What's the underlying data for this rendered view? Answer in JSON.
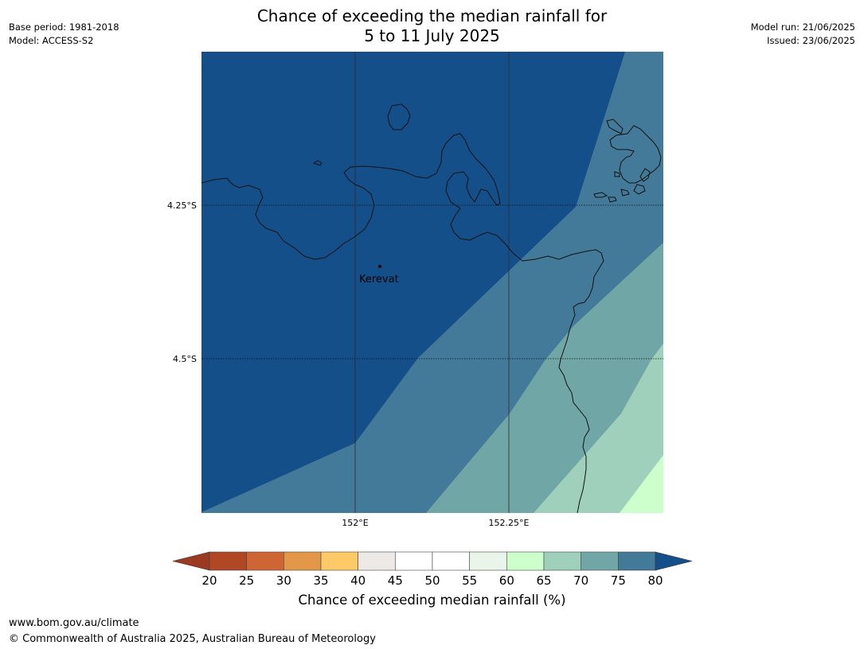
{
  "header": {
    "title_line1": "Chance of exceeding the median rainfall for",
    "title_line2": "5 to 11 July 2025",
    "base_period": "Base period: 1981-2018",
    "model": "Model: ACCESS-S2",
    "model_run": "Model run: 21/06/2025",
    "issued": "Issued: 23/06/2025"
  },
  "map": {
    "place": "Kerevat",
    "lat_labels": [
      "4.25°S",
      "4.5°S"
    ],
    "lon_labels": [
      "152°E",
      "152.25°E"
    ],
    "grid_style": "dotted latitude lines, solid longitude lines"
  },
  "colorbar": {
    "title": "Chance of exceeding median rainfall (%)",
    "ticks": [
      "20",
      "25",
      "30",
      "35",
      "40",
      "45",
      "50",
      "55",
      "60",
      "65",
      "70",
      "75",
      "80"
    ],
    "colors": {
      "under": "#9a3a22",
      "20-25": "#b04826",
      "25-30": "#cf6535",
      "30-35": "#e39748",
      "35-40": "#fdca67",
      "40-45": "#ede9e6",
      "45-50": "#ffffff",
      "50-55": "#ffffff",
      "55-60": "#e8f5e8",
      "60-65": "#ccffcc",
      "65-70": "#9fd0bb",
      "70-75": "#70a6a6",
      "75-80": "#437a99",
      "over": "#154f8a"
    }
  },
  "footer": {
    "url": "www.bom.gov.au/climate",
    "copyright": "© Commonwealth of Australia 2025, Australian Bureau of Meteorology"
  }
}
